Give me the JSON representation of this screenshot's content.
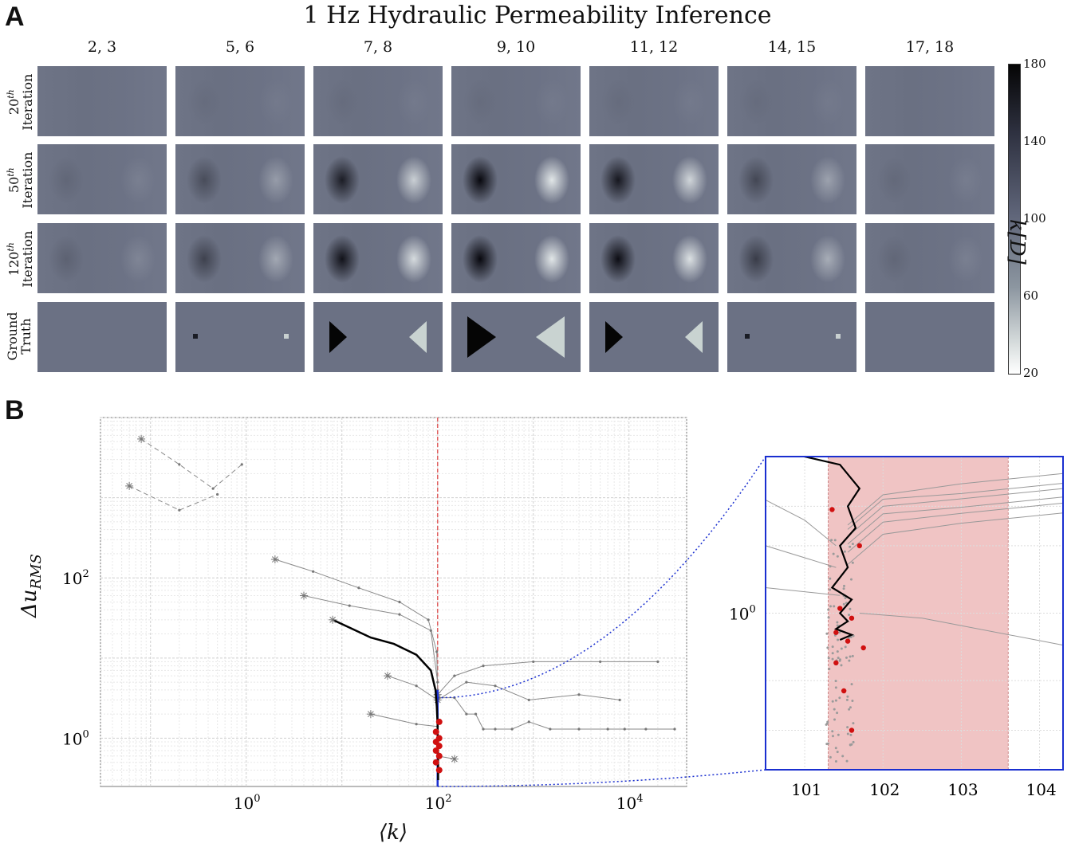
{
  "panel_a": {
    "label": "A",
    "title": "1 Hz Hydraulic Permeability Inference",
    "columns": [
      "2, 3",
      "5, 6",
      "7, 8",
      "9, 10",
      "11, 12",
      "14, 15",
      "17, 18"
    ],
    "rows": [
      {
        "line1": "20",
        "sup": "th",
        "line2": "Iteration"
      },
      {
        "line1": "50",
        "sup": "th",
        "line2": "Iteration"
      },
      {
        "line1": "120",
        "sup": "th",
        "line2": "Iteration"
      },
      {
        "line1": "Ground",
        "sup": "",
        "line2": "Truth"
      }
    ],
    "colorbar": {
      "ticks": [
        "180",
        "140",
        "100",
        "60",
        "20"
      ],
      "label": "k[D]",
      "min": 20,
      "max": 180
    }
  },
  "panel_b": {
    "label": "B",
    "ylabel": "Δu_RMS",
    "xlabel": "⟨k⟩",
    "inset_ytick": "10⁰",
    "inset_xticks": [
      "101",
      "102",
      "103",
      "104"
    ]
  },
  "chart_data": [
    {
      "type": "heatmap",
      "title": "1 Hz Hydraulic Permeability Inference",
      "columns": [
        "2, 3",
        "5, 6",
        "7, 8",
        "9, 10",
        "11, 12",
        "14, 15",
        "17, 18"
      ],
      "rows": [
        "20th Iteration",
        "50th Iteration",
        "120th Iteration",
        "Ground Truth"
      ],
      "colorbar_range": [
        20,
        180
      ],
      "colorbar_label": "k[D]",
      "anomaly_strength": [
        [
          0.0,
          0.05,
          0.05,
          0.05,
          0.05,
          0.05,
          0.0
        ],
        [
          0.1,
          0.35,
          0.8,
          1.0,
          0.85,
          0.4,
          0.08
        ],
        [
          0.15,
          0.45,
          0.9,
          1.0,
          0.95,
          0.5,
          0.1
        ],
        [
          0.0,
          0.2,
          1.0,
          1.0,
          1.0,
          0.2,
          0.0
        ]
      ],
      "ground_truth_low_k": 35,
      "ground_truth_high_k": 180,
      "background_k": 100
    },
    {
      "type": "line",
      "xscale": "log",
      "yscale": "log",
      "xlabel": "⟨k⟩",
      "ylabel": "Δu_RMS",
      "xticks": [
        "10⁰",
        "10²",
        "10⁴"
      ],
      "yticks": [
        "10⁰",
        "10²"
      ],
      "xlim": [
        0.03,
        40000
      ],
      "ylim": [
        0.25,
        10000
      ],
      "reference_line_x": 100,
      "main_run": {
        "x": [
          8,
          12,
          20,
          35,
          60,
          85,
          95,
          98,
          100,
          100.5,
          101,
          101.2
        ],
        "y": [
          30,
          24,
          18,
          15,
          11,
          7,
          4,
          2.5,
          1.5,
          0.9,
          0.6,
          0.3
        ]
      },
      "other_runs": [
        {
          "x": [
            0.08,
            0.2,
            0.45,
            0.9
          ],
          "y": [
            5400,
            2600,
            1300,
            2600
          ]
        },
        {
          "x": [
            0.06,
            0.2,
            0.5
          ],
          "y": [
            1400,
            700,
            1100
          ]
        },
        {
          "x": [
            2,
            5,
            15,
            40,
            80,
            98,
            100
          ],
          "y": [
            170,
            120,
            75,
            50,
            30,
            12,
            4
          ]
        },
        {
          "x": [
            4,
            12,
            40,
            85,
            100
          ],
          "y": [
            60,
            45,
            35,
            22,
            5
          ]
        },
        {
          "x": [
            100,
            150,
            300,
            1000,
            5000,
            20000
          ],
          "y": [
            3.5,
            6,
            8,
            9,
            9,
            9
          ]
        },
        {
          "x": [
            100,
            200,
            400,
            900,
            3000,
            8000
          ],
          "y": [
            3,
            5,
            4.5,
            3,
            3.5,
            3
          ]
        },
        {
          "x": [
            100,
            150,
            200,
            250,
            300,
            400,
            600,
            900,
            1500,
            3000,
            6000,
            9000,
            15000,
            30000
          ],
          "y": [
            3.2,
            3.2,
            2.0,
            2.0,
            1.3,
            1.3,
            1.3,
            1.6,
            1.3,
            1.3,
            1.3,
            1.3,
            1.3,
            1.3
          ]
        },
        {
          "x": [
            30,
            60,
            100
          ],
          "y": [
            6,
            4.5,
            3
          ]
        },
        {
          "x": [
            20,
            60,
            100
          ],
          "y": [
            2.0,
            1.5,
            1.4
          ]
        },
        {
          "x": [
            150,
            100
          ],
          "y": [
            0.55,
            0.6
          ]
        }
      ],
      "convergence_points": {
        "x": [
          100,
          100,
          100,
          100,
          100,
          100,
          100,
          100,
          100
        ],
        "y": [
          1.6,
          1.2,
          1.0,
          0.9,
          0.8,
          0.7,
          0.6,
          0.5,
          0.4
        ]
      }
    },
    {
      "type": "line",
      "title": "inset",
      "xticks": [
        "101",
        "102",
        "103",
        "104"
      ],
      "yticks": [
        "10⁰"
      ],
      "xlim": [
        100.5,
        104.3
      ],
      "shaded_range_x": [
        101.3,
        103.6
      ],
      "main_run": {
        "x": [
          101.0,
          101.5,
          101.7,
          101.6,
          101.5,
          101.4,
          101.5,
          101.45,
          101.5,
          101.4
        ],
        "y": [
          4.0,
          3.4,
          2.6,
          1.9,
          1.4,
          1.1,
          1.0,
          0.9,
          0.85,
          0.78
        ]
      },
      "red_points": {
        "x": [
          101.35,
          101.7,
          101.45,
          101.6,
          101.4,
          101.55,
          101.75,
          101.4,
          101.5,
          101.6
        ],
        "y": [
          2.9,
          2.0,
          1.05,
          0.95,
          0.82,
          0.75,
          0.7,
          0.6,
          0.45,
          0.3
        ]
      }
    }
  ]
}
